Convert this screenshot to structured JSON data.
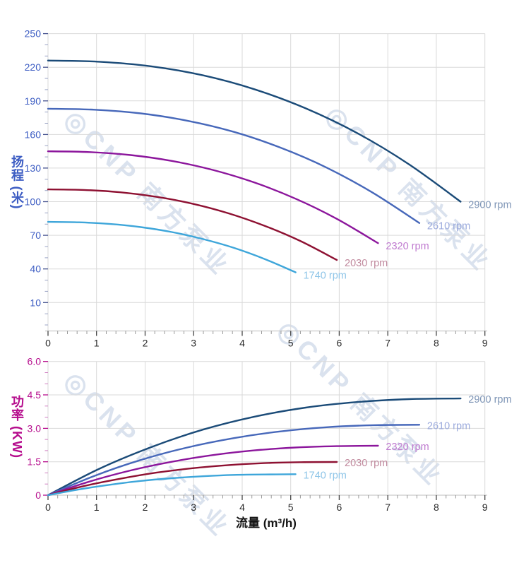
{
  "watermark": {
    "text": "◎CNP 南方泵业",
    "color": "#c2cfe3",
    "opacity": 0.6
  },
  "x_axis": {
    "title": "流量 (m³/h)",
    "title_color": "#141414",
    "ticks": [
      0,
      1,
      2,
      3,
      4,
      5,
      6,
      7,
      8,
      9
    ],
    "tick_label_color": "#2b2b2b"
  },
  "chart_data": [
    {
      "id": "head",
      "type": "line",
      "title": "",
      "xlabel": "流量 (m³/h)",
      "ylabel": "扬程 (米)",
      "axis_color": "#3d5dc3",
      "grid": true,
      "legend_position": "inline-curve-end-labels",
      "xlim": [
        0,
        9
      ],
      "ylim": [
        -15,
        253
      ],
      "y_tick_values": [
        10,
        40,
        70,
        100,
        130,
        160,
        190,
        220,
        250
      ],
      "y_tick_labels": [
        "10",
        "40",
        "70",
        "100",
        "130",
        "160",
        "190",
        "220",
        "250"
      ],
      "series": [
        {
          "name": "2900 rpm",
          "color": "#1b4b78",
          "label_color": "#7e95b6",
          "points": [
            [
              0,
              226
            ],
            [
              1.06,
              224.9
            ],
            [
              2.13,
              220.8
            ],
            [
              3.19,
              212.8
            ],
            [
              4.25,
              200.4
            ],
            [
              5.31,
              183.3
            ],
            [
              6.38,
              161.0
            ],
            [
              7.44,
              133.3
            ],
            [
              8.5,
              100
            ]
          ]
        },
        {
          "name": "2610 rpm",
          "color": "#4768ba",
          "label_color": "#9cabdd",
          "points": [
            [
              0,
              183
            ],
            [
              0.96,
              182.1
            ],
            [
              1.91,
              178.8
            ],
            [
              2.87,
              172.3
            ],
            [
              3.83,
              162.3
            ],
            [
              4.78,
              148.4
            ],
            [
              5.74,
              130.4
            ],
            [
              6.69,
              108.0
            ],
            [
              7.65,
              81
            ]
          ]
        },
        {
          "name": "2320 rpm",
          "color": "#8c169c",
          "label_color": "#c07cd0",
          "points": [
            [
              0,
              145
            ],
            [
              0.85,
              144.3
            ],
            [
              1.7,
              141.6
            ],
            [
              2.55,
              136.4
            ],
            [
              3.4,
              128.3
            ],
            [
              4.25,
              117.2
            ],
            [
              5.1,
              102.7
            ],
            [
              5.95,
              84.7
            ],
            [
              6.8,
              63
            ]
          ]
        },
        {
          "name": "2030 rpm",
          "color": "#8e1132",
          "label_color": "#c18a9e",
          "points": [
            [
              0,
              111
            ],
            [
              0.74,
              110.5
            ],
            [
              1.49,
              108.4
            ],
            [
              2.23,
              104.4
            ],
            [
              2.98,
              98.2
            ],
            [
              3.72,
              89.6
            ],
            [
              4.46,
              78.5
            ],
            [
              5.21,
              64.7
            ],
            [
              5.95,
              48
            ]
          ]
        },
        {
          "name": "1740 rpm",
          "color": "#3ea6da",
          "label_color": "#8ec5e8",
          "points": [
            [
              0,
              82
            ],
            [
              0.64,
              81.6
            ],
            [
              1.28,
              80.1
            ],
            [
              1.91,
              77.3
            ],
            [
              2.55,
              72.9
            ],
            [
              3.19,
              66.7
            ],
            [
              3.83,
              58.8
            ],
            [
              4.46,
              48.9
            ],
            [
              5.1,
              37
            ]
          ]
        }
      ]
    },
    {
      "id": "power",
      "type": "line",
      "title": "",
      "xlabel": "流量 (m³/h)",
      "ylabel": "功率 (KW)",
      "axis_color": "#b60d8d",
      "grid": true,
      "legend_position": "inline-curve-end-labels",
      "xlim": [
        0,
        9
      ],
      "ylim": [
        0,
        6
      ],
      "y_tick_values": [
        0,
        1.5,
        3,
        4.5,
        6
      ],
      "y_tick_labels": [
        "0",
        "1.5",
        "3.0",
        "4.5",
        "6.0"
      ],
      "series": [
        {
          "name": "2900 rpm",
          "color": "#1b4b78",
          "label_color": "#7e95b6",
          "points": [
            [
              0,
              0
            ],
            [
              1.06,
              1.19
            ],
            [
              2.13,
              2.16
            ],
            [
              3.19,
              2.94
            ],
            [
              4.25,
              3.52
            ],
            [
              5.31,
              3.93
            ],
            [
              6.38,
              4.18
            ],
            [
              7.44,
              4.31
            ],
            [
              8.5,
              4.34
            ]
          ]
        },
        {
          "name": "2610 rpm",
          "color": "#4768ba",
          "label_color": "#9cabdd",
          "points": [
            [
              0,
              0
            ],
            [
              0.96,
              0.87
            ],
            [
              1.91,
              1.58
            ],
            [
              2.87,
              2.14
            ],
            [
              3.83,
              2.56
            ],
            [
              4.78,
              2.86
            ],
            [
              5.74,
              3.05
            ],
            [
              6.69,
              3.14
            ],
            [
              7.65,
              3.16
            ]
          ]
        },
        {
          "name": "2320 rpm",
          "color": "#8c169c",
          "label_color": "#c07cd0",
          "points": [
            [
              0,
              0
            ],
            [
              0.85,
              0.61
            ],
            [
              1.7,
              1.11
            ],
            [
              2.55,
              1.5
            ],
            [
              3.4,
              1.8
            ],
            [
              4.25,
              2.01
            ],
            [
              5.1,
              2.14
            ],
            [
              5.95,
              2.2
            ],
            [
              6.8,
              2.22
            ]
          ]
        },
        {
          "name": "2030 rpm",
          "color": "#8e1132",
          "label_color": "#c18a9e",
          "points": [
            [
              0,
              0
            ],
            [
              0.74,
              0.41
            ],
            [
              1.49,
              0.74
            ],
            [
              2.23,
              1.01
            ],
            [
              2.98,
              1.21
            ],
            [
              3.72,
              1.35
            ],
            [
              4.46,
              1.44
            ],
            [
              5.21,
              1.48
            ],
            [
              5.95,
              1.49
            ]
          ]
        },
        {
          "name": "1740 rpm",
          "color": "#3ea6da",
          "label_color": "#8ec5e8",
          "points": [
            [
              0,
              0
            ],
            [
              0.64,
              0.26
            ],
            [
              1.28,
              0.47
            ],
            [
              1.91,
              0.64
            ],
            [
              2.55,
              0.76
            ],
            [
              3.19,
              0.85
            ],
            [
              3.83,
              0.91
            ],
            [
              4.46,
              0.93
            ],
            [
              5.1,
              0.94
            ]
          ]
        }
      ]
    }
  ]
}
